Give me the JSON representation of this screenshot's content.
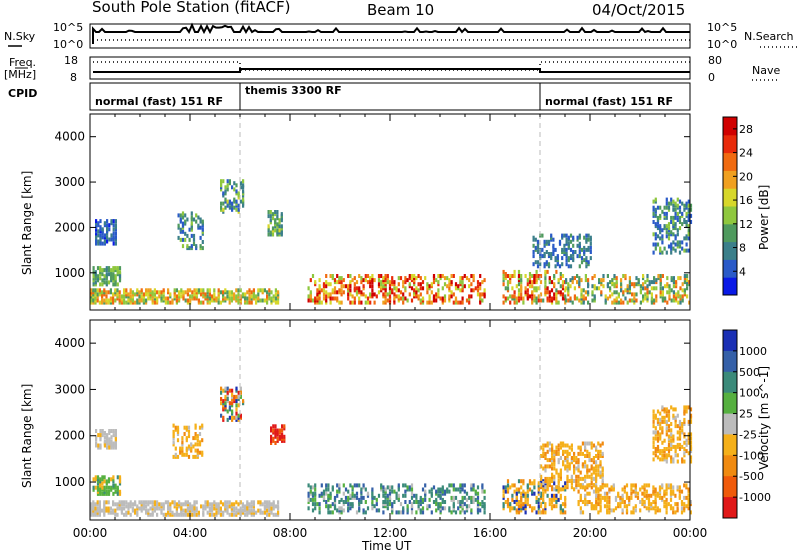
{
  "header": {
    "station": "South Pole Station (fitACF)",
    "beam": "Beam 10",
    "date": "04/Oct/2015"
  },
  "strip_labels": {
    "nsky": "N.Sky",
    "nsearch": "N.Search",
    "freq": "Freq.",
    "freq_unit": "[MHz]",
    "nave": "Nave",
    "cpid": "CPID",
    "nsky_ticks": [
      "10^5",
      "10^0"
    ],
    "nsearch_ticks": [
      "10^5",
      "10^0"
    ],
    "freq_ticks": [
      "18",
      "8"
    ],
    "nave_ticks": [
      "80",
      "0"
    ]
  },
  "cpid_segments": [
    {
      "label": "normal (fast) 151 RF",
      "start_hr": 0,
      "end_hr": 6
    },
    {
      "label": "themis 3300 RF",
      "start_hr": 6,
      "end_hr": 18
    },
    {
      "label": "normal (fast) 151 RF",
      "start_hr": 18,
      "end_hr": 24
    }
  ],
  "chart_data": [
    {
      "type": "heatmap",
      "panel": "power",
      "xlabel": "Time UT",
      "ylabel": "Slant Range [km]",
      "xlim": [
        0,
        24
      ],
      "ylim": [
        180,
        4500
      ],
      "yticks": [
        "1000",
        "2000",
        "3000",
        "4000"
      ],
      "colorbar": {
        "label": "Power [dB]",
        "ticks": [
          "4",
          "8",
          "12",
          "16",
          "20",
          "24",
          "28"
        ],
        "range": [
          0,
          30
        ],
        "colors": [
          "#0a1ae6",
          "#2a5ac8",
          "#3b7f8a",
          "#4f9a5e",
          "#8fc73e",
          "#d7d72a",
          "#f0a020",
          "#f06a10",
          "#e82a0a",
          "#d00000"
        ]
      },
      "regions": [
        {
          "t0": 0.1,
          "t1": 1.2,
          "r0": 700,
          "r1": 1100,
          "val_min": 8,
          "val_max": 14
        },
        {
          "t0": 0.2,
          "t1": 1.0,
          "r0": 1600,
          "r1": 2100,
          "val_min": 2,
          "val_max": 8
        },
        {
          "t0": 0.0,
          "t1": 7.5,
          "r0": 300,
          "r1": 600,
          "val_min": 10,
          "val_max": 24
        },
        {
          "t0": 3.5,
          "t1": 4.5,
          "r0": 1500,
          "r1": 2300,
          "val_min": 3,
          "val_max": 14
        },
        {
          "t0": 5.2,
          "t1": 6.1,
          "r0": 2300,
          "r1": 3000,
          "val_min": 3,
          "val_max": 16
        },
        {
          "t0": 7.1,
          "t1": 7.7,
          "r0": 1800,
          "r1": 2300,
          "val_min": 6,
          "val_max": 16
        },
        {
          "t0": 8.7,
          "t1": 15.8,
          "r0": 300,
          "r1": 900,
          "val_min": 12,
          "val_max": 30
        },
        {
          "t0": 16.5,
          "t1": 19.0,
          "r0": 300,
          "r1": 1000,
          "val_min": 10,
          "val_max": 30
        },
        {
          "t0": 17.7,
          "t1": 20.0,
          "r0": 1100,
          "r1": 1800,
          "val_min": 3,
          "val_max": 10
        },
        {
          "t0": 19.0,
          "t1": 24.0,
          "r0": 300,
          "r1": 900,
          "val_min": 6,
          "val_max": 24
        },
        {
          "t0": 22.5,
          "t1": 24.0,
          "r0": 1400,
          "r1": 2600,
          "val_min": 3,
          "val_max": 14
        }
      ]
    },
    {
      "type": "heatmap",
      "panel": "velocity",
      "xlabel": "Time UT",
      "ylabel": "Slant Range [km]",
      "xlim": [
        0,
        24
      ],
      "ylim": [
        180,
        4500
      ],
      "xticks": [
        "00:00",
        "04:00",
        "08:00",
        "12:00",
        "16:00",
        "20:00",
        "00:00"
      ],
      "yticks": [
        "1000",
        "2000",
        "3000",
        "4000"
      ],
      "colorbar": {
        "label": "Velocity [m s^-1]",
        "ticks": [
          "1000",
          "500",
          "100",
          "25",
          "-25",
          "-100",
          "-500",
          "-1000"
        ],
        "colors": [
          "#1a2fb4",
          "#3560a8",
          "#3b8a7a",
          "#56b040",
          "#bcbcbc",
          "#f5b01a",
          "#f08a10",
          "#f05a0a",
          "#e01818"
        ]
      },
      "regions": [
        {
          "t0": 0.1,
          "t1": 1.2,
          "r0": 700,
          "r1": 1100,
          "cat": "green"
        },
        {
          "t0": 0.2,
          "t1": 1.0,
          "r0": 1700,
          "r1": 2100,
          "cat": "grey"
        },
        {
          "t0": 0.0,
          "t1": 7.5,
          "r0": 250,
          "r1": 550,
          "cat": "grey"
        },
        {
          "t0": 3.3,
          "t1": 4.5,
          "r0": 1500,
          "r1": 2200,
          "cat": "orange"
        },
        {
          "t0": 5.2,
          "t1": 6.1,
          "r0": 2300,
          "r1": 3000,
          "cat": "mixed"
        },
        {
          "t0": 7.2,
          "t1": 7.8,
          "r0": 1800,
          "r1": 2200,
          "cat": "red"
        },
        {
          "t0": 8.7,
          "t1": 15.8,
          "r0": 300,
          "r1": 900,
          "cat": "green_blue"
        },
        {
          "t0": 16.5,
          "t1": 19.0,
          "r0": 300,
          "r1": 1000,
          "cat": "orange_blue"
        },
        {
          "t0": 18.0,
          "t1": 20.5,
          "r0": 800,
          "r1": 1800,
          "cat": "orange"
        },
        {
          "t0": 19.5,
          "t1": 24.0,
          "r0": 300,
          "r1": 900,
          "cat": "orange"
        },
        {
          "t0": 22.5,
          "t1": 24.0,
          "r0": 1400,
          "r1": 2600,
          "cat": "orange"
        }
      ]
    }
  ],
  "colors": {
    "frame": "#000000",
    "dashed_marker": "#bbbbbb"
  }
}
